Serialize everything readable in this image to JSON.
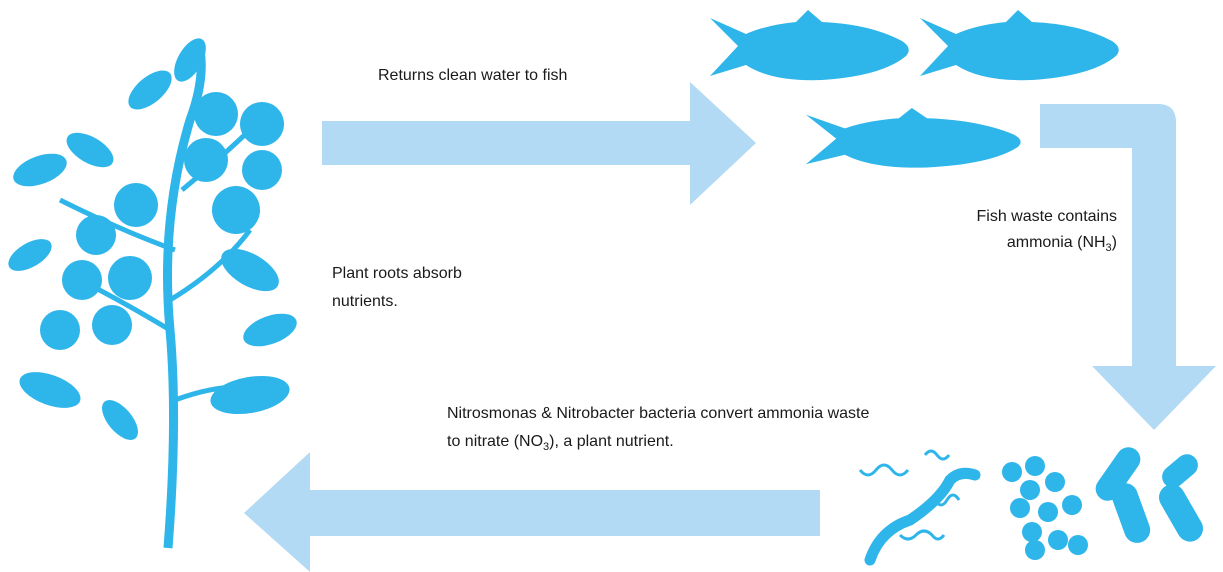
{
  "labels": {
    "returns": "Returns clean water to fish",
    "fish_waste": {
      "line1": "Fish waste contains",
      "line2": "ammonia (NH",
      "sub": "3",
      "after": ")"
    },
    "plant_roots": {
      "line1": "Plant roots absorb",
      "line2": "nutrients."
    },
    "bacteria": {
      "line1": "Nitrosmonas & Nitrobacter bacteria convert ammonia waste",
      "line2": "to nitrate (NO",
      "sub": "3",
      "after": "), a plant nutrient."
    }
  }
}
